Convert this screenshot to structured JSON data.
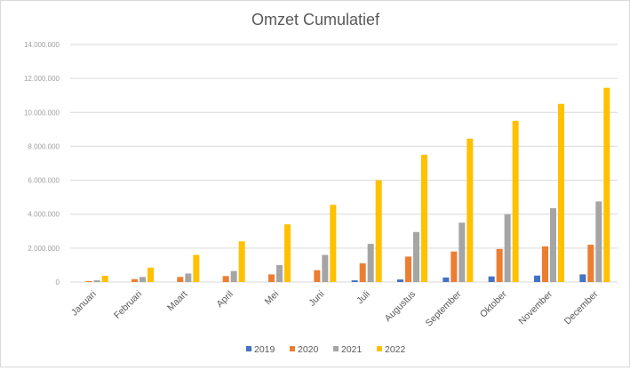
{
  "chart_data": {
    "type": "bar",
    "title": "Omzet Cumulatief",
    "xlabel": "",
    "ylabel": "",
    "ylim": [
      0,
      14000000
    ],
    "yticks": [
      0,
      2000000,
      4000000,
      6000000,
      8000000,
      10000000,
      12000000,
      14000000
    ],
    "ytick_labels": [
      "0",
      "2.000.000",
      "4.000.000",
      "6.000.000",
      "8.000.000",
      "10.000.000",
      "12.000.000",
      "14.000.000"
    ],
    "grid": true,
    "legend_position": "bottom",
    "categories": [
      "Januari",
      "Februari",
      "Maart",
      "April",
      "Mei",
      "Juni",
      "Juli",
      "Augustus",
      "September",
      "Oktober",
      "November",
      "December"
    ],
    "series": [
      {
        "name": "2019",
        "color": "#4472c4",
        "values": [
          0,
          0,
          0,
          0,
          0,
          0,
          100000,
          150000,
          270000,
          330000,
          380000,
          450000
        ]
      },
      {
        "name": "2020",
        "color": "#ed7d31",
        "values": [
          50000,
          170000,
          300000,
          350000,
          450000,
          700000,
          1100000,
          1500000,
          1800000,
          1950000,
          2100000,
          2200000
        ]
      },
      {
        "name": "2021",
        "color": "#a5a5a5",
        "values": [
          100000,
          300000,
          500000,
          650000,
          1000000,
          1600000,
          2250000,
          2950000,
          3500000,
          4000000,
          4350000,
          4750000
        ]
      },
      {
        "name": "2022",
        "color": "#ffc000",
        "values": [
          370000,
          850000,
          1600000,
          2400000,
          3400000,
          4550000,
          6000000,
          7500000,
          8450000,
          9500000,
          10500000,
          11450000
        ]
      }
    ]
  }
}
